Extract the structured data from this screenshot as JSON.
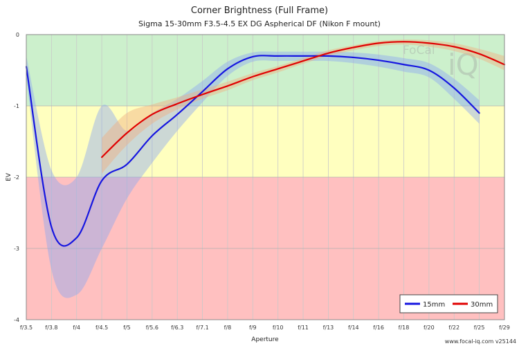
{
  "chart_data": {
    "type": "line",
    "title": "Corner Brightness (Full Frame)",
    "subtitle": "Sigma 15-30mm F3.5-4.5 EX DG Aspherical DF (Nikon F mount)",
    "xlabel": "Aperture",
    "ylabel": "EV",
    "x_ticks": [
      "f/3.5",
      "f/3.8",
      "f/4",
      "f/4.5",
      "f/5",
      "f/5.6",
      "f/6.3",
      "f/7.1",
      "f/8",
      "f/9",
      "f/10",
      "f/11",
      "f/13",
      "f/14",
      "f/16",
      "f/18",
      "f/20",
      "f/22",
      "f/25",
      "f/29"
    ],
    "y_ticks": [
      "0",
      "-1",
      "-2",
      "-3",
      "-4"
    ],
    "ylim": [
      -4,
      0
    ],
    "grid": true,
    "legend_position": "bottom-right",
    "bands": [
      {
        "from": -1,
        "to": 0,
        "color": "#ccf0cc"
      },
      {
        "from": -2,
        "to": -1,
        "color": "#ffffbf"
      },
      {
        "from": -4,
        "to": -2,
        "color": "#ffc0c0"
      }
    ],
    "series": [
      {
        "name": "15mm",
        "color": "#1515e0",
        "band_color": "#8fa8f0",
        "x": [
          "f/3.5",
          "f/3.8",
          "f/4",
          "f/4.5",
          "f/5",
          "f/5.6",
          "f/6.3",
          "f/7.1",
          "f/8",
          "f/9",
          "f/10",
          "f/11",
          "f/13",
          "f/14",
          "f/16",
          "f/18",
          "f/20",
          "f/22",
          "f/25"
        ],
        "values": [
          -0.45,
          -2.7,
          -2.85,
          -2.05,
          -1.82,
          -1.42,
          -1.12,
          -0.8,
          -0.48,
          -0.31,
          -0.3,
          -0.3,
          -0.3,
          -0.32,
          -0.36,
          -0.42,
          -0.5,
          -0.75,
          -1.1
        ],
        "band_upper": [
          -0.3,
          -1.9,
          -2.0,
          -1.0,
          -1.35,
          -1.1,
          -0.9,
          -0.65,
          -0.38,
          -0.25,
          -0.24,
          -0.24,
          -0.24,
          -0.25,
          -0.28,
          -0.33,
          -0.4,
          -0.62,
          -0.92
        ],
        "band_lower": [
          -0.6,
          -3.3,
          -3.65,
          -3.0,
          -2.3,
          -1.8,
          -1.35,
          -0.95,
          -0.58,
          -0.38,
          -0.37,
          -0.37,
          -0.37,
          -0.4,
          -0.45,
          -0.52,
          -0.6,
          -0.9,
          -1.25
        ]
      },
      {
        "name": "30mm",
        "color": "#e00000",
        "band_color": "#f0b080",
        "x": [
          "f/4.5",
          "f/5",
          "f/5.6",
          "f/6.3",
          "f/7.1",
          "f/8",
          "f/9",
          "f/10",
          "f/11",
          "f/13",
          "f/14",
          "f/16",
          "f/18",
          "f/20",
          "f/22",
          "f/25",
          "f/29"
        ],
        "values": [
          -1.72,
          -1.38,
          -1.12,
          -0.97,
          -0.84,
          -0.72,
          -0.59,
          -0.48,
          -0.37,
          -0.26,
          -0.18,
          -0.12,
          -0.1,
          -0.12,
          -0.17,
          -0.27,
          -0.42
        ],
        "band_upper": [
          -1.45,
          -1.1,
          -0.98,
          -0.88,
          -0.77,
          -0.66,
          -0.54,
          -0.44,
          -0.33,
          -0.22,
          -0.15,
          -0.09,
          -0.07,
          -0.08,
          -0.12,
          -0.2,
          -0.3
        ],
        "band_lower": [
          -1.95,
          -1.55,
          -1.25,
          -1.05,
          -0.9,
          -0.78,
          -0.64,
          -0.53,
          -0.41,
          -0.3,
          -0.22,
          -0.16,
          -0.14,
          -0.17,
          -0.23,
          -0.34,
          -0.5
        ]
      }
    ]
  },
  "watermark": {
    "brand_part1": "FoCal",
    "brand_part2": "iQ"
  },
  "footer": "www.focal-iq.com  v25144"
}
